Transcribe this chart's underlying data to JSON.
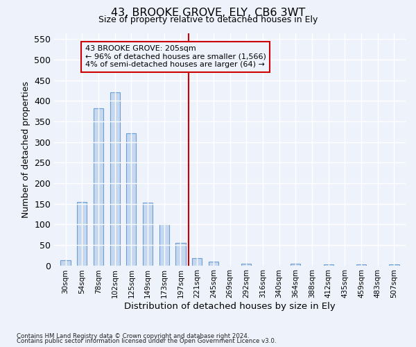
{
  "title": "43, BROOKE GROVE, ELY, CB6 3WT",
  "subtitle": "Size of property relative to detached houses in Ely",
  "xlabel": "Distribution of detached houses by size in Ely",
  "ylabel": "Number of detached properties",
  "categories": [
    "30sqm",
    "54sqm",
    "78sqm",
    "102sqm",
    "125sqm",
    "149sqm",
    "173sqm",
    "197sqm",
    "221sqm",
    "245sqm",
    "269sqm",
    "292sqm",
    "316sqm",
    "340sqm",
    "364sqm",
    "388sqm",
    "412sqm",
    "435sqm",
    "459sqm",
    "483sqm",
    "507sqm"
  ],
  "bar_heights": [
    13,
    155,
    382,
    420,
    322,
    152,
    100,
    55,
    18,
    10,
    0,
    5,
    0,
    0,
    4,
    0,
    3,
    0,
    2,
    0,
    3
  ],
  "bar_color": "#c5d8f0",
  "bar_edge_color": "#6b9fd4",
  "vline_x_index": 7.5,
  "ylim": [
    0,
    565
  ],
  "yticks": [
    0,
    50,
    100,
    150,
    200,
    250,
    300,
    350,
    400,
    450,
    500,
    550
  ],
  "annotation_line1": "43 BROOKE GROVE: 205sqm",
  "annotation_line2": "← 96% of detached houses are smaller (1,566)",
  "annotation_line3": "4% of semi-detached houses are larger (64) →",
  "annotation_box_color": "#cc0000",
  "vline_color": "#cc0000",
  "bg_color": "#eef2fb",
  "footnote_line1": "Contains HM Land Registry data © Crown copyright and database right 2024.",
  "footnote_line2": "Contains public sector information licensed under the Open Government Licence v3.0."
}
